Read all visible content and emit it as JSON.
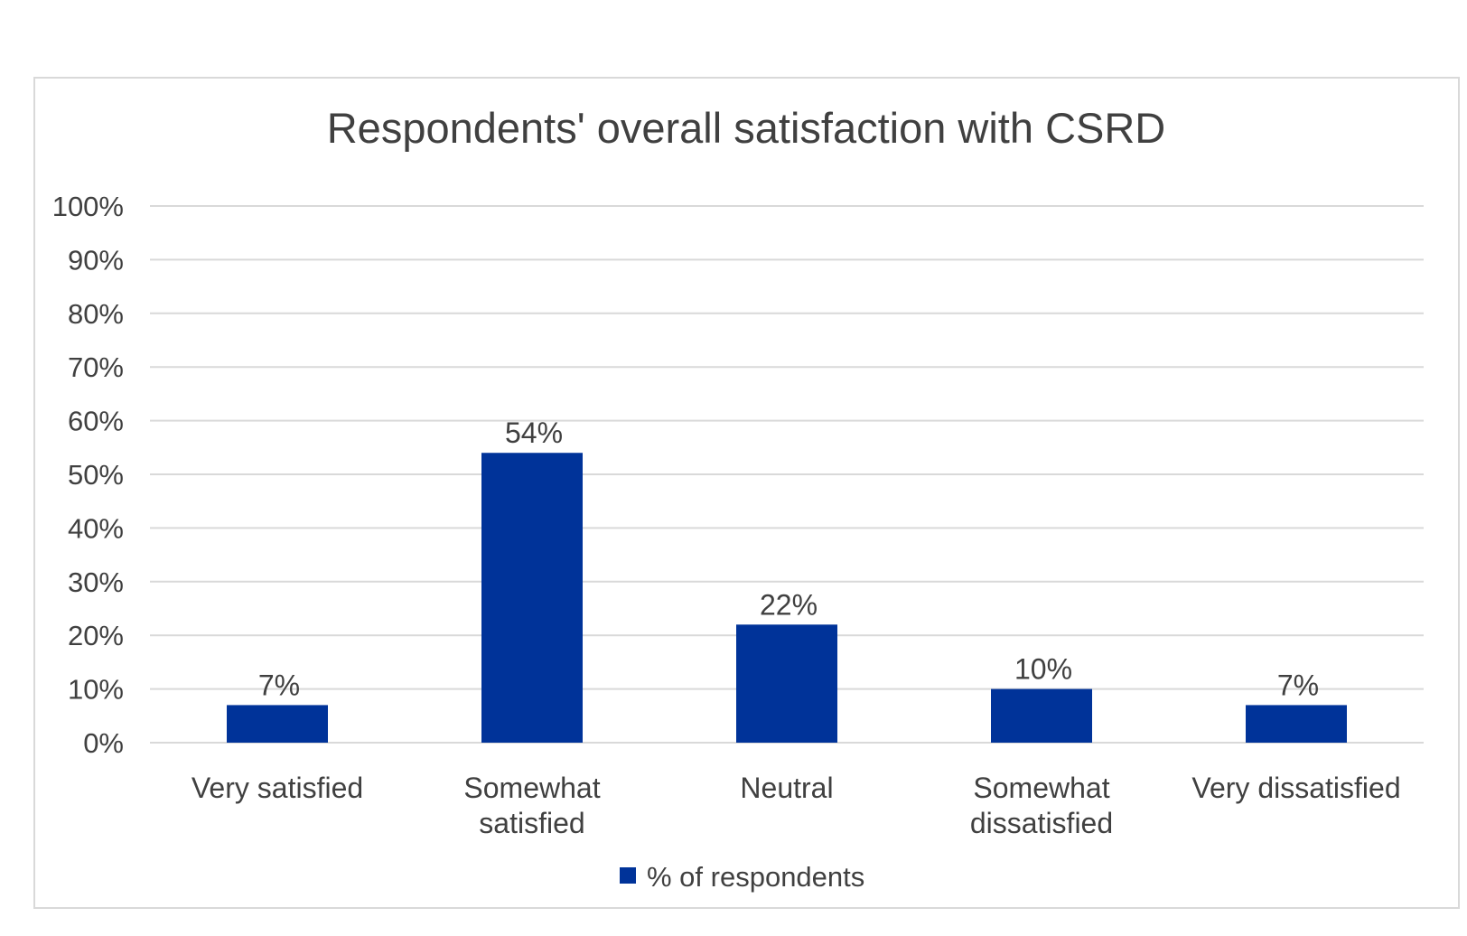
{
  "chart_data": {
    "type": "bar",
    "title": "Respondents' overall satisfaction with CSRD",
    "xlabel": "",
    "ylabel": "",
    "categories": [
      [
        "Very satisfied"
      ],
      [
        "Somewhat",
        "satisfied"
      ],
      [
        "Neutral"
      ],
      [
        "Somewhat",
        "dissatisfied"
      ],
      [
        "Very dissatisfied"
      ]
    ],
    "series": [
      {
        "name": "% of respondents",
        "values": [
          7,
          54,
          22,
          10,
          7
        ],
        "labels": [
          "7%",
          "54%",
          "22%",
          "10%",
          "7%"
        ],
        "color": "#003399"
      }
    ],
    "ylim": [
      0,
      100
    ],
    "yticks": [
      "0%",
      "10%",
      "20%",
      "30%",
      "40%",
      "50%",
      "60%",
      "70%",
      "80%",
      "90%",
      "100%"
    ],
    "grid": true,
    "gridline_color": "#d9d9d9",
    "legend_position": "bottom"
  }
}
